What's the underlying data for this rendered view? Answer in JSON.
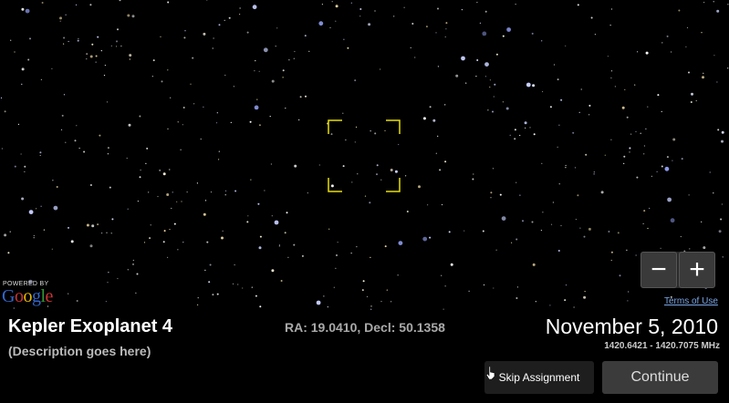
{
  "sky": {
    "background": "#000000",
    "reticle_color": "#e8e000"
  },
  "map": {
    "powered_by": "POWERED BY",
    "google_letters": [
      "G",
      "o",
      "o",
      "g",
      "l",
      "e"
    ],
    "google_colors": [
      "#3366cc",
      "#cc3333",
      "#e6b800",
      "#3366cc",
      "#339933",
      "#cc3333"
    ],
    "terms_label": "Terms of Use",
    "zoom_out_label": "−",
    "zoom_in_label": "+"
  },
  "target": {
    "title": "Kepler Exoplanet 4",
    "description": "(Description goes here)",
    "coordinates": "RA: 19.0410, Decl: 50.1358"
  },
  "observation": {
    "date": "November 5, 2010",
    "frequency_range": "1420.6421 - 1420.7075 MHz"
  },
  "actions": {
    "skip_label": "Skip Assignment",
    "continue_label": "Continue"
  }
}
